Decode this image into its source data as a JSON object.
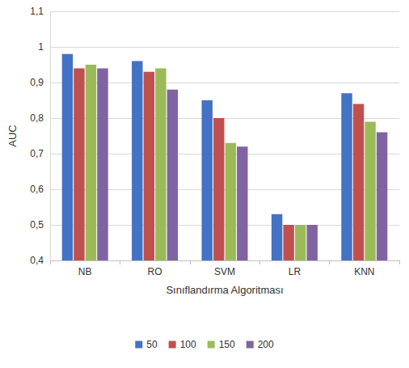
{
  "chart_data": {
    "type": "bar",
    "x_label": "Sınıflandırma Algoritması",
    "y_label": "AUC",
    "categories": [
      "NB",
      "RO",
      "SVM",
      "LR",
      "KNN"
    ],
    "series": [
      {
        "name": "50",
        "color": "#4472c4",
        "values": [
          0.98,
          0.96,
          0.85,
          0.53,
          0.87
        ]
      },
      {
        "name": "100",
        "color": "#c0504d",
        "values": [
          0.94,
          0.93,
          0.8,
          0.5,
          0.84
        ]
      },
      {
        "name": "150",
        "color": "#9bbb59",
        "values": [
          0.95,
          0.94,
          0.73,
          0.5,
          0.79
        ]
      },
      {
        "name": "200",
        "color": "#8064a2",
        "values": [
          0.94,
          0.88,
          0.72,
          0.5,
          0.76
        ]
      }
    ],
    "ylim": [
      0.4,
      1.1
    ],
    "yticks": [
      {
        "value": 0.4,
        "label": "0,4"
      },
      {
        "value": 0.5,
        "label": "0,5"
      },
      {
        "value": 0.6,
        "label": "0,6"
      },
      {
        "value": 0.7,
        "label": "0,7"
      },
      {
        "value": 0.8,
        "label": "0,8"
      },
      {
        "value": 0.9,
        "label": "0,9"
      },
      {
        "value": 1,
        "label": "1"
      },
      {
        "value": 1.1,
        "label": "1,1"
      }
    ],
    "grid": true,
    "legend": "bottom"
  }
}
